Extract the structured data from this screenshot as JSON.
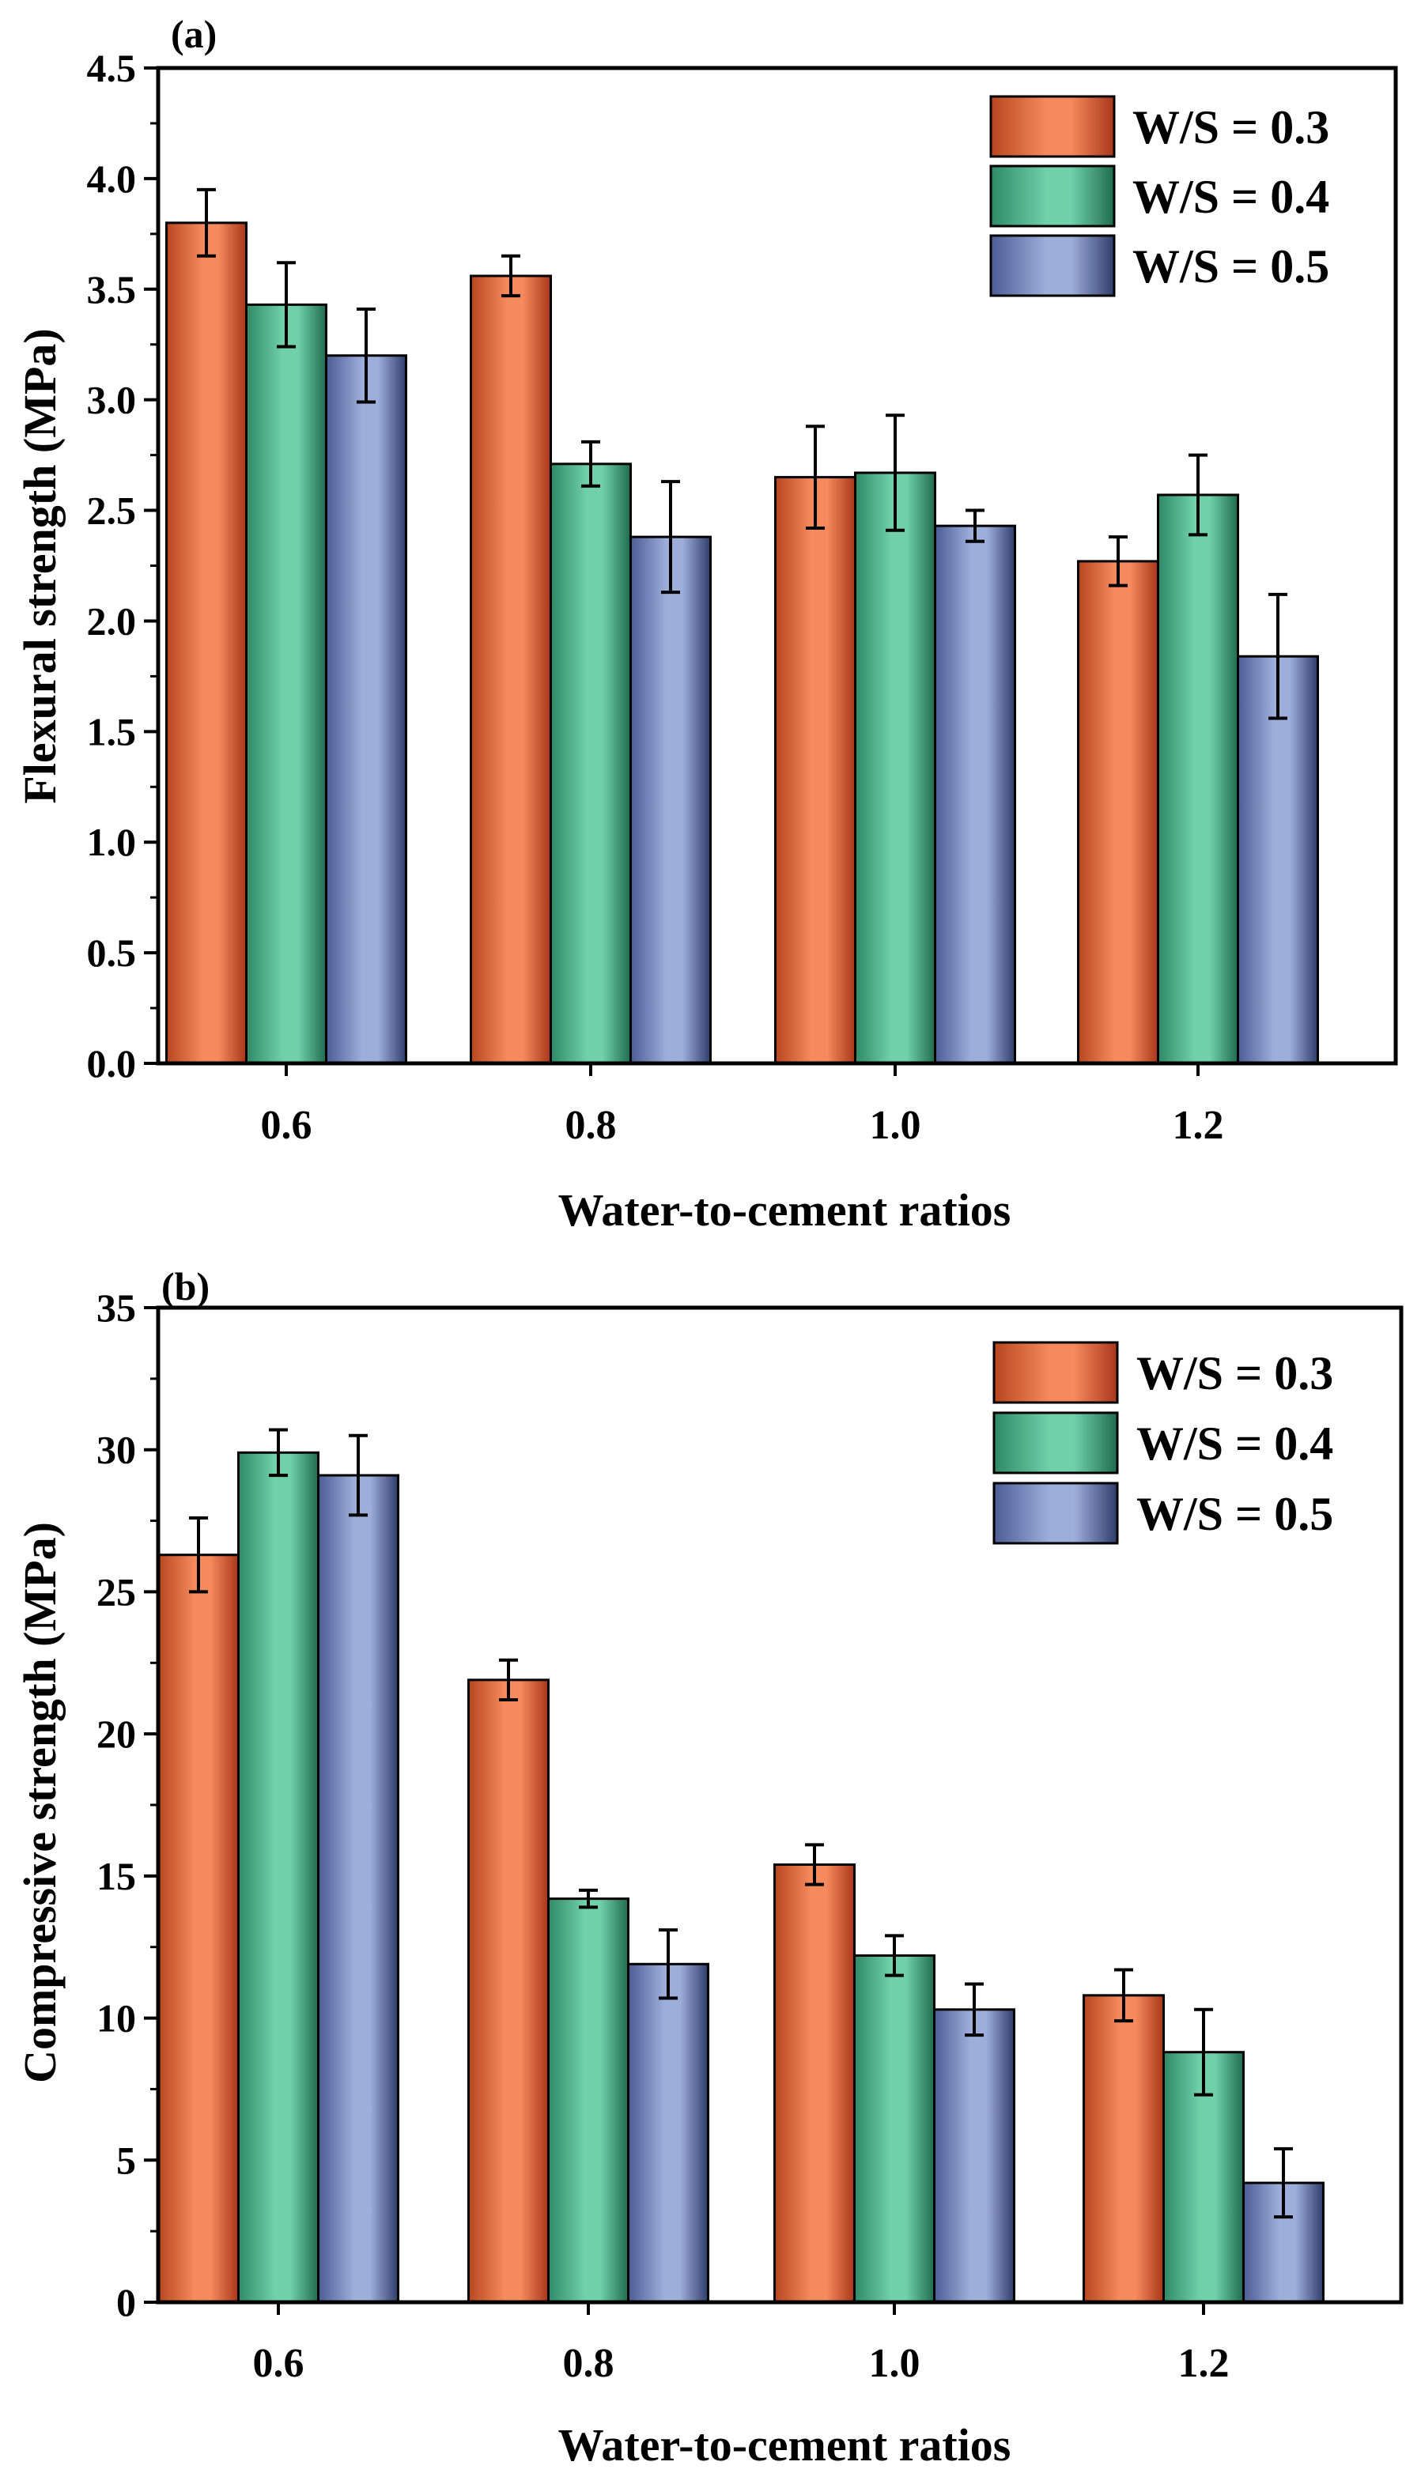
{
  "figure": {
    "colors": {
      "ws03": "#f07a4e",
      "ws03_dark": "#a8361a",
      "ws04": "#5fc59e",
      "ws04_dark": "#1f6b4f",
      "ws05": "#8f9fd0",
      "ws05_dark": "#2e3c6a"
    }
  },
  "chart_data": [
    {
      "type": "bar",
      "panel_label": "(a)",
      "xlabel": "Water-to-cement ratios",
      "ylabel": "Flexural strength (MPa)",
      "ylim": [
        0,
        4.5
      ],
      "yticks": [
        "0.0",
        "0.5",
        "1.0",
        "1.5",
        "2.0",
        "2.5",
        "3.0",
        "3.5",
        "4.0",
        "4.5"
      ],
      "categories": [
        "0.6",
        "0.8",
        "1.0",
        "1.2"
      ],
      "legend_position": "top-right",
      "series": [
        {
          "name": "W/S = 0.3",
          "values": [
            3.8,
            3.56,
            2.65,
            2.27
          ],
          "errors": [
            0.15,
            0.09,
            0.23,
            0.11
          ]
        },
        {
          "name": "W/S = 0.4",
          "values": [
            3.43,
            2.71,
            2.67,
            2.57
          ],
          "errors": [
            0.19,
            0.1,
            0.26,
            0.18
          ]
        },
        {
          "name": "W/S = 0.5",
          "values": [
            3.2,
            2.38,
            2.43,
            1.84
          ],
          "errors": [
            0.21,
            0.25,
            0.07,
            0.28
          ]
        }
      ]
    },
    {
      "type": "bar",
      "panel_label": "(b)",
      "xlabel": "Water-to-cement ratios",
      "ylabel": "Compressive strength (MPa)",
      "ylim": [
        0,
        35
      ],
      "yticks": [
        "0",
        "5",
        "10",
        "15",
        "20",
        "25",
        "30",
        "35"
      ],
      "categories": [
        "0.6",
        "0.8",
        "1.0",
        "1.2"
      ],
      "legend_position": "top-right",
      "series": [
        {
          "name": "W/S = 0.3",
          "values": [
            26.3,
            21.9,
            15.4,
            10.8
          ],
          "errors": [
            1.3,
            0.7,
            0.7,
            0.9
          ]
        },
        {
          "name": "W/S = 0.4",
          "values": [
            29.9,
            14.2,
            12.2,
            8.8
          ],
          "errors": [
            0.8,
            0.3,
            0.7,
            1.5
          ]
        },
        {
          "name": "W/S = 0.5",
          "values": [
            29.1,
            11.9,
            10.3,
            4.2
          ],
          "errors": [
            1.4,
            1.2,
            0.9,
            1.2
          ]
        }
      ]
    }
  ]
}
